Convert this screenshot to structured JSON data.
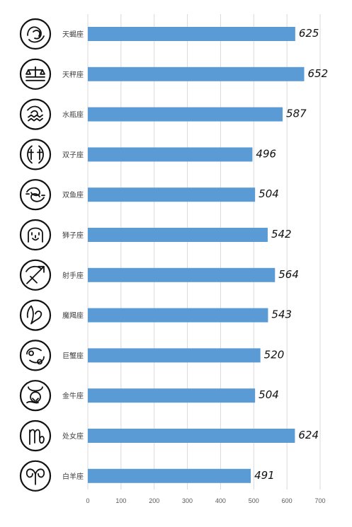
{
  "chart_data": {
    "type": "bar",
    "orientation": "horizontal",
    "categories": [
      "天蝎座",
      "天秤座",
      "水瓶座",
      "双子座",
      "双鱼座",
      "狮子座",
      "射手座",
      "魔羯座",
      "巨蟹座",
      "金牛座",
      "处女座",
      "白羊座"
    ],
    "values": [
      625,
      652,
      587,
      496,
      504,
      542,
      564,
      543,
      520,
      504,
      624,
      491
    ],
    "category_icons": [
      "scorpio-icon",
      "libra-icon",
      "aquarius-icon",
      "gemini-icon",
      "pisces-icon",
      "leo-icon",
      "sagittarius-icon",
      "capricorn-icon",
      "cancer-icon",
      "taurus-icon",
      "virgo-icon",
      "aries-icon"
    ],
    "xlim": [
      0,
      700
    ],
    "xticks": [
      0,
      100,
      200,
      300,
      400,
      500,
      600,
      700
    ],
    "grid": true,
    "legend": "none",
    "bar_color": "#5b9bd5",
    "title": "",
    "xlabel": "",
    "ylabel": ""
  }
}
